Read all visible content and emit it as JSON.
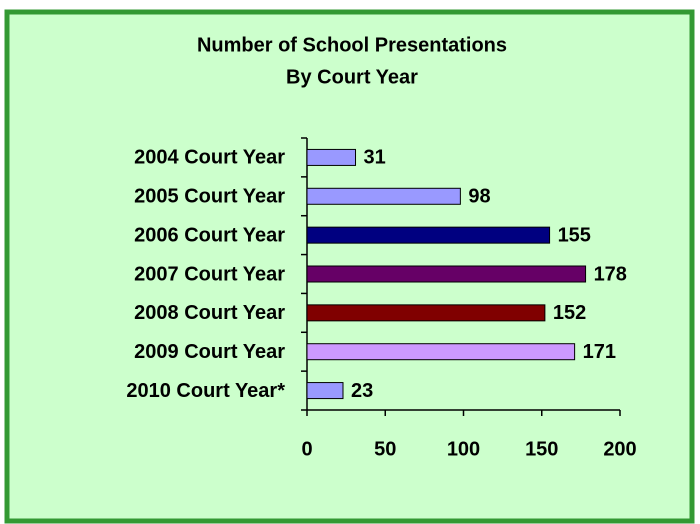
{
  "chart_data": {
    "type": "bar",
    "orientation": "horizontal",
    "title": [
      "Number of School Presentations",
      "By Court Year"
    ],
    "categories": [
      "2004 Court Year",
      "2005 Court Year",
      "2006 Court Year",
      "2007 Court Year",
      "2008 Court Year",
      "2009 Court Year",
      "2010 Court Year*"
    ],
    "values": [
      31,
      98,
      155,
      178,
      152,
      171,
      23
    ],
    "colors": [
      "#9999ff",
      "#9999ff",
      "#000080",
      "#660066",
      "#800000",
      "#cc99ff",
      "#9999ff"
    ],
    "xlim": [
      0,
      200
    ],
    "xticks": [
      0,
      50,
      100,
      150,
      200
    ],
    "background": "#ccffcc",
    "border_color": "#339933"
  }
}
